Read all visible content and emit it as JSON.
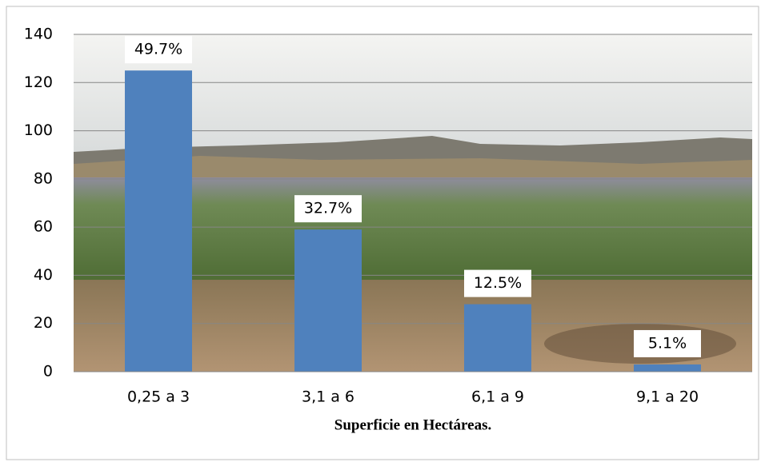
{
  "chart_data": {
    "type": "bar",
    "x_label": "Superficie en Hectáreas.",
    "categories": [
      "0,25 a 3",
      "3,1 a 6",
      "6,1 a 9",
      "9,1 a 20"
    ],
    "values": [
      125,
      59,
      28,
      3
    ],
    "percent_labels": [
      "49.7%",
      "32.7%",
      "12.5%",
      "5.1%"
    ],
    "color": "#4f81bd",
    "ylim": [
      0,
      140
    ],
    "yticks": [
      0,
      20,
      40,
      60,
      80,
      100,
      120,
      140
    ],
    "grid": true
  }
}
